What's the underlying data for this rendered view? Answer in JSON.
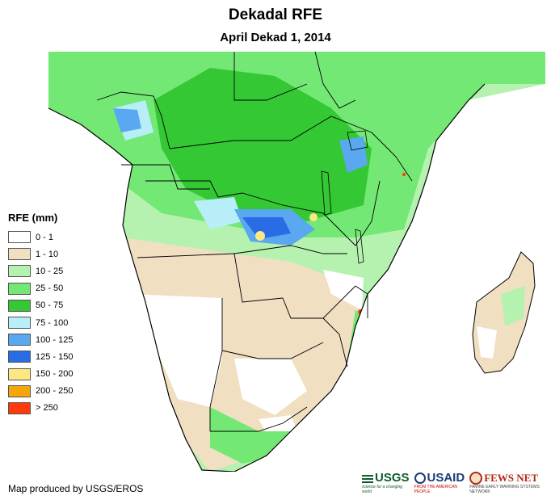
{
  "title": "Dekadal RFE",
  "subtitle": "April Dekad 1, 2014",
  "legend": {
    "title": "RFE (mm)",
    "items": [
      {
        "label": "0 - 1",
        "color": "#ffffff"
      },
      {
        "label": "1 - 10",
        "color": "#f1dfc2"
      },
      {
        "label": "10 - 25",
        "color": "#b5f2b0"
      },
      {
        "label": "25 - 50",
        "color": "#74e874"
      },
      {
        "label": "50 - 75",
        "color": "#35c835"
      },
      {
        "label": "75 - 100",
        "color": "#b8eef8"
      },
      {
        "label": "100 - 125",
        "color": "#5aa8ef"
      },
      {
        "label": "125 - 150",
        "color": "#2a6be6"
      },
      {
        "label": "150 - 200",
        "color": "#fde783"
      },
      {
        "label": "200 - 250",
        "color": "#f5a60a"
      },
      {
        "label": "> 250",
        "color": "#ff3a0a"
      }
    ]
  },
  "credit": "Map produced by USGS/EROS",
  "logos": {
    "usgs": {
      "name": "USGS",
      "tagline": "science for a changing world"
    },
    "usaid": {
      "name": "USAID",
      "tagline": "FROM THE AMERICAN PEOPLE"
    },
    "fews": {
      "name": "FEWS NET",
      "tagline": "FAMINE EARLY WARNING SYSTEMS NETWORK"
    }
  }
}
